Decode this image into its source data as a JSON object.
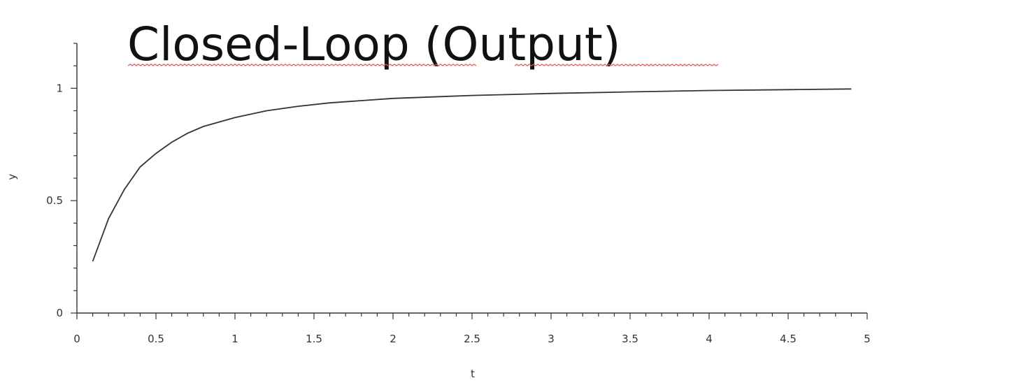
{
  "chart_data": {
    "type": "line",
    "title": "Closed-Loop (Output)",
    "xlabel": "t",
    "ylabel": "y",
    "xlim": [
      0,
      5
    ],
    "ylim": [
      0,
      1.2
    ],
    "x_ticks": [
      "0",
      "0.5",
      "1",
      "1.5",
      "2",
      "2.5",
      "3",
      "3.5",
      "4",
      "4.5",
      "5"
    ],
    "y_ticks": [
      "0",
      "0.5",
      "1"
    ],
    "grid": false,
    "series": [
      {
        "x": [
          0.1,
          0.2,
          0.3,
          0.4,
          0.5,
          0.6,
          0.7,
          0.8,
          0.9,
          1.0,
          1.2,
          1.4,
          1.6,
          1.8,
          2.0,
          2.5,
          3.0,
          3.5,
          4.0,
          4.5,
          4.9
        ],
        "y": [
          0.23,
          0.42,
          0.55,
          0.65,
          0.71,
          0.76,
          0.8,
          0.83,
          0.85,
          0.87,
          0.9,
          0.92,
          0.935,
          0.945,
          0.955,
          0.968,
          0.977,
          0.984,
          0.99,
          0.994,
          0.997
        ]
      }
    ],
    "colors": {
      "line": "#333333",
      "spellcheck": "#e05555"
    }
  }
}
